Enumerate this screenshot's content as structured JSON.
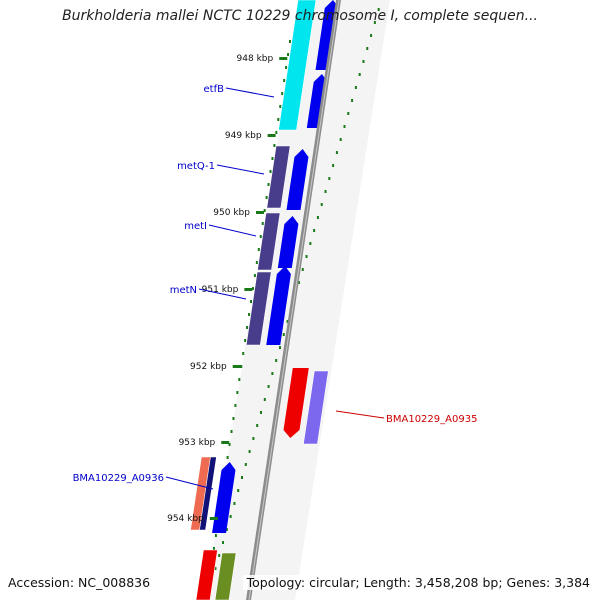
{
  "title": "Burkholderia mallei NCTC 10229 chromosome I, complete sequen...",
  "footer": {
    "accession": "Accession: NC_008836",
    "topology": "Topology: circular; Length: 3,458,208 bp; Genes: 3,384"
  },
  "colors": {
    "backbone": "#8c8c8c",
    "tick": "#1a7a1a",
    "gene_label": "#0000cc",
    "gene_label_reverse": "#cc0000",
    "forward_cds": "#0000ee",
    "cyan_feature": "#00e5ee",
    "purple_feature": "#483d8b",
    "red_feature": "#ee0000",
    "lavender_feature": "#7b68ee",
    "salmon_feature": "#ee6a50",
    "olive_feature": "#6b8e23"
  },
  "ticks": [
    "948 kbp",
    "949 kbp",
    "950 kbp",
    "951 kbp",
    "952 kbp",
    "953 kbp",
    "954 kbp"
  ],
  "genes": [
    "etfB",
    "metQ-1",
    "metI",
    "metN",
    "BMA10229_A0935",
    "BMA10229_A0936"
  ]
}
